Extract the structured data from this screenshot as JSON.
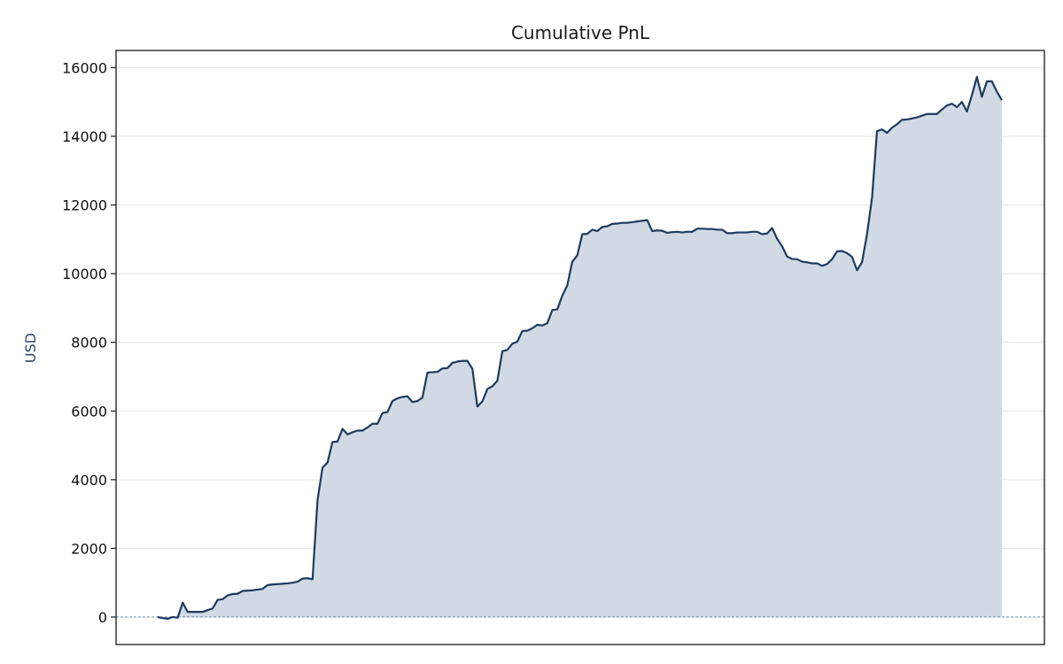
{
  "chart_data": {
    "type": "area",
    "title": "Cumulative PnL",
    "xlabel": "",
    "ylabel": "USD",
    "ylim": [
      -800,
      16500
    ],
    "yticks": [
      0,
      2000,
      4000,
      6000,
      8000,
      10000,
      12000,
      14000,
      16000
    ],
    "grid": "horizontal",
    "legend": "none",
    "zero_line": true,
    "series": [
      {
        "values": [
          0,
          -30,
          -50,
          0,
          -20,
          420,
          150,
          150,
          150,
          150,
          200,
          250,
          500,
          520,
          630,
          670,
          680,
          760,
          770,
          780,
          800,
          820,
          930,
          950,
          960,
          970,
          980,
          1000,
          1030,
          1120,
          1130,
          1100,
          3400,
          4350,
          4500,
          5100,
          5110,
          5480,
          5320,
          5380,
          5430,
          5430,
          5520,
          5630,
          5630,
          5940,
          5970,
          6290,
          6370,
          6410,
          6430,
          6260,
          6290,
          6390,
          7120,
          7130,
          7140,
          7240,
          7250,
          7400,
          7440,
          7460,
          7460,
          7230,
          6130,
          6280,
          6640,
          6720,
          6880,
          7740,
          7780,
          7960,
          8020,
          8330,
          8340,
          8410,
          8510,
          8490,
          8560,
          8940,
          8960,
          9360,
          9660,
          10350,
          10530,
          11150,
          11160,
          11280,
          11240,
          11360,
          11380,
          11450,
          11460,
          11480,
          11480,
          11500,
          11520,
          11540,
          11560,
          11240,
          11260,
          11250,
          11190,
          11210,
          11220,
          11200,
          11220,
          11220,
          11310,
          11310,
          11300,
          11300,
          11280,
          11280,
          11180,
          11180,
          11200,
          11200,
          11200,
          11220,
          11220,
          11150,
          11170,
          11330,
          11020,
          10800,
          10500,
          10430,
          10420,
          10350,
          10330,
          10300,
          10300,
          10230,
          10280,
          10420,
          10650,
          10660,
          10600,
          10490,
          10100,
          10330,
          11150,
          12200,
          14150,
          14200,
          14100,
          14250,
          14350,
          14480,
          14490,
          14520,
          14550,
          14600,
          14650,
          14650,
          14650,
          14780,
          14900,
          14950,
          14850,
          15000,
          14720,
          15200,
          15730,
          15150,
          15600,
          15600,
          15300,
          15050
        ]
      }
    ]
  },
  "colors": {
    "line": "#1f3a5f",
    "fill": "#d1dae4",
    "ylabel": "#2d4b6e",
    "grid": "#e6e6e6",
    "zero_line": "#5a7391"
  }
}
